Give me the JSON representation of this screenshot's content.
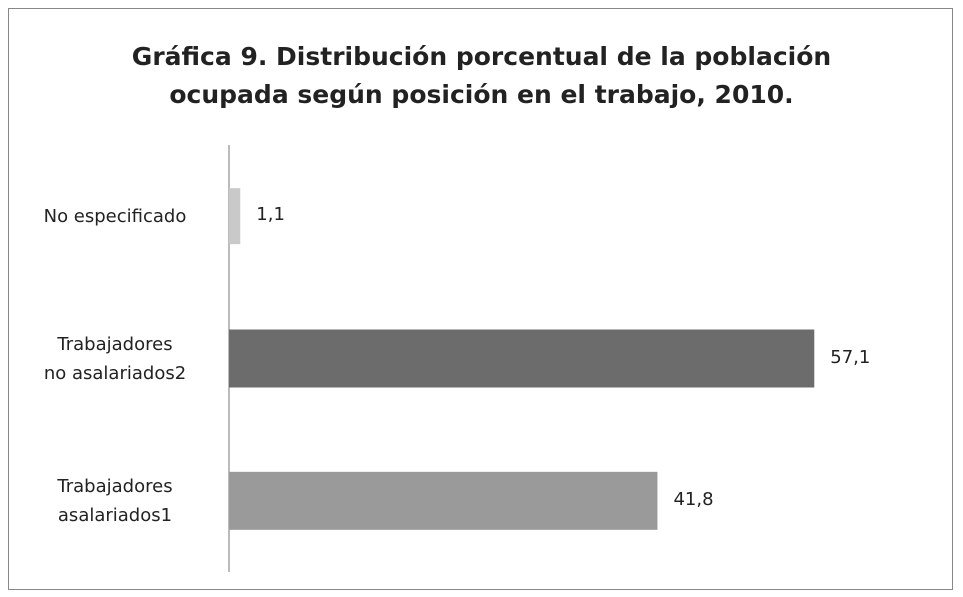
{
  "chart_data": {
    "type": "bar",
    "orientation": "horizontal",
    "title": "Gráfica 9. Distribución porcentual de la población\nocupada según posición en el trabajo, 2010.",
    "categories": [
      "No especificado",
      "Trabajadores\nno asalariados2",
      "Trabajadores\nasalariados1"
    ],
    "values": [
      1.1,
      57.1,
      41.8
    ],
    "value_labels": [
      "1,1",
      "57,1",
      "41,8"
    ],
    "colors": [
      "#c9c9c9",
      "#6c6c6c",
      "#9a9a9a"
    ],
    "xlim": [
      0,
      60
    ]
  }
}
